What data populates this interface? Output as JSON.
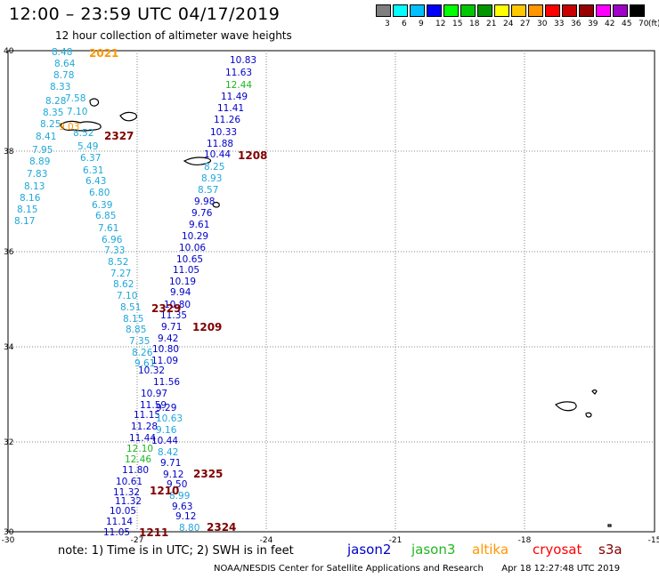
{
  "header": {
    "title": "12:00 – 23:59 UTC 04/17/2019",
    "subtitle": "12 hour collection of altimeter wave heights"
  },
  "colorbar": {
    "unit": "(ft)",
    "labels": [
      "3",
      "6",
      "9",
      "12",
      "15",
      "18",
      "21",
      "24",
      "27",
      "30",
      "33",
      "36",
      "39",
      "42",
      "45",
      "70"
    ],
    "colors": [
      "#7f7f7f",
      "#00ffff",
      "#00bfff",
      "#0000ff",
      "#00ff00",
      "#00c800",
      "#009600",
      "#ffff00",
      "#ffc800",
      "#ff9600",
      "#ff0000",
      "#c80000",
      "#960000",
      "#ff00ff",
      "#a000c8",
      "#000000"
    ]
  },
  "axes": {
    "x_ticks": [
      "-30",
      "-27",
      "-24",
      "-21",
      "-18",
      "-15"
    ],
    "y_ticks": [
      "40",
      "38",
      "36",
      "34",
      "32",
      "30"
    ]
  },
  "colors": {
    "jason2": "#0000c8",
    "jason3": "#1fb81f",
    "altika": "#ff9600",
    "cryosat": "#ff0000",
    "s3a": "#800000",
    "cyan": "#1ea8d8",
    "pass_id": "#800000",
    "grid": "#888888"
  },
  "tracks": {
    "cyan_left": [
      "8.48",
      "8.64",
      "8.78",
      "8.33",
      "7.58",
      "8.28",
      "8.35",
      "7.10",
      "8.25",
      "8.52",
      "8.41",
      "5.49",
      "7.95",
      "6.37",
      "8.89",
      "6.31",
      "7.83",
      "6.43",
      "8.13",
      "6.80",
      "8.16",
      "6.39",
      "8.15",
      "6.85",
      "8.17",
      "7.61",
      "6.96",
      "7.33",
      "8.52",
      "7.27",
      "8.62",
      "7.10",
      "8.51",
      "8.15",
      "8.85",
      "7.35",
      "8.26",
      "9.61"
    ],
    "jason2_upper": [
      "10.83",
      "11.63",
      "12.44",
      "11.49",
      "11.41",
      "11.26",
      "10.33",
      "11.88",
      "10.44",
      "8.25",
      "8.93",
      "8.57",
      "9.98",
      "9.76",
      "9.61",
      "10.29",
      "10.06",
      "10.65",
      "11.05",
      "10.19",
      "9.94",
      "10.80",
      "11.35",
      "9.71",
      "9.42",
      "10.80",
      "11.09",
      "10.32",
      "11.56",
      "10.97",
      "11.59",
      "11.15",
      "9.29",
      "10.63",
      "11.28",
      "9.16",
      "11.44",
      "10.44"
    ],
    "lower": [
      "12.10",
      "8.42",
      "12.46",
      "9.71",
      "11.80",
      "9.12",
      "10.61",
      "9.50",
      "11.32",
      "8.99",
      "11.32",
      "10.05",
      "9.63",
      "11.14",
      "9.12",
      "11.05",
      "8.80"
    ]
  },
  "pass_ids": [
    "2021",
    "2327",
    "1208",
    "2329",
    "1209",
    "2325",
    "1210",
    "2324",
    "1211"
  ],
  "legend": {
    "note": "note: 1) Time is in UTC; 2) SWH is in feet",
    "missions": [
      "jason2",
      "jason3",
      "altika",
      "cryosat",
      "s3a"
    ]
  },
  "footer": {
    "credit": "NOAA/NESDIS Center for Satellite Applications and Research",
    "timestamp": "Apr 18 12:27:48 UTC 2019"
  }
}
